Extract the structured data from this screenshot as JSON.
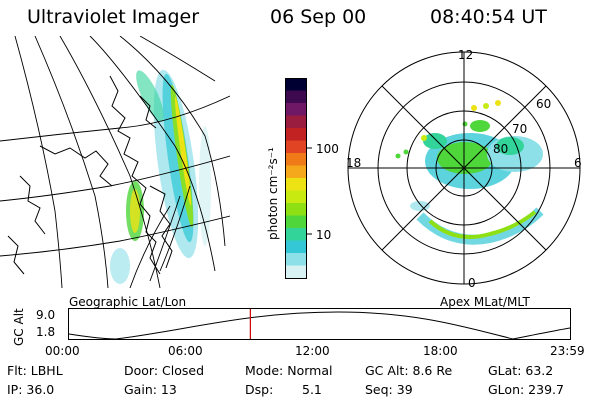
{
  "header": {
    "instrument": "Ultraviolet Imager",
    "date": "06 Sep 00",
    "time": "08:40:54 UT"
  },
  "left_panel": {
    "caption": "Geographic Lat/Lon"
  },
  "colorbar": {
    "label": "photon cm⁻²s⁻¹",
    "scale": "log",
    "ticks": [
      "100",
      "10"
    ],
    "colors": [
      "#000033",
      "#3d0a4f",
      "#6e1866",
      "#9a1c3e",
      "#c22222",
      "#e04422",
      "#f07a18",
      "#f5a81c",
      "#ece214",
      "#c8ea10",
      "#8ee014",
      "#4ed63a",
      "#32d49a",
      "#34c8d6",
      "#8de0e8",
      "#d8f2f4"
    ]
  },
  "right_panel": {
    "caption": "Apex MLat/MLT",
    "mlt_labels": [
      "12",
      "6",
      "0",
      "18"
    ],
    "mlat_labels": [
      "60",
      "70",
      "80"
    ]
  },
  "altitude_plot": {
    "ylabel": "GC Alt",
    "y_ticks": [
      "9.0",
      "1.8"
    ],
    "x_ticks": [
      "00:00",
      "06:00",
      "12:00",
      "18:00",
      "23:59"
    ],
    "current_time_fraction": 0.362,
    "marker_color": "#cc0000"
  },
  "info": {
    "row1": {
      "flt": "Flt: LBHL",
      "door": "Door: Closed",
      "mode": "Mode: Normal",
      "gcalt": "GC Alt: 8.6 Re",
      "glat": "GLat: 63.2"
    },
    "row2": {
      "ip": "IP: 36.0",
      "gain": "Gain: 13",
      "dsp_label": "Dsp:",
      "dsp_value": "5.1",
      "seq": "Seq: 39",
      "glon": "GLon: 239.7"
    }
  }
}
